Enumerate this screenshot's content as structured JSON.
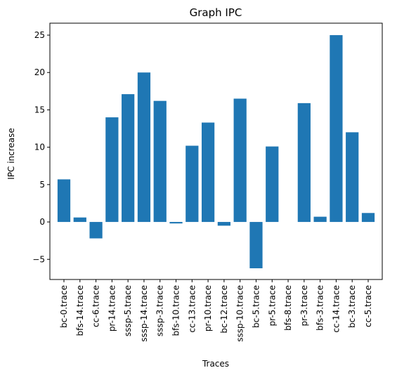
{
  "colors": {
    "bar": "#1f77b4",
    "axis": "#000000",
    "background": "#ffffff"
  },
  "chart_data": {
    "type": "bar",
    "title": "Graph IPC",
    "xlabel": "Traces",
    "ylabel": "IPC increase",
    "ylim": [
      -7.7,
      26.6
    ],
    "yticks": [
      -5,
      0,
      5,
      10,
      15,
      20,
      25
    ],
    "ytick_labels": [
      "−5",
      "0",
      "5",
      "10",
      "15",
      "20",
      "25"
    ],
    "grid": false,
    "legend": "none",
    "categories": [
      "bc-0.trace",
      "bfs-14.trace",
      "cc-6.trace",
      "pr-14.trace",
      "sssp-5.trace",
      "sssp-14.trace",
      "sssp-3.trace",
      "bfs-10.trace",
      "cc-13.trace",
      "pr-10.trace",
      "bc-12.trace",
      "sssp-10.trace",
      "bc-5.trace",
      "pr-5.trace",
      "bfs-8.trace",
      "pr-3.trace",
      "bfs-3.trace",
      "cc-14.trace",
      "bc-3.trace",
      "cc-5.trace"
    ],
    "values": [
      5.7,
      0.6,
      -2.2,
      14.0,
      17.1,
      20.0,
      16.2,
      -0.2,
      10.2,
      13.3,
      -0.5,
      16.5,
      -6.2,
      10.1,
      0.0,
      15.9,
      0.7,
      25.0,
      12.0,
      1.2
    ]
  }
}
